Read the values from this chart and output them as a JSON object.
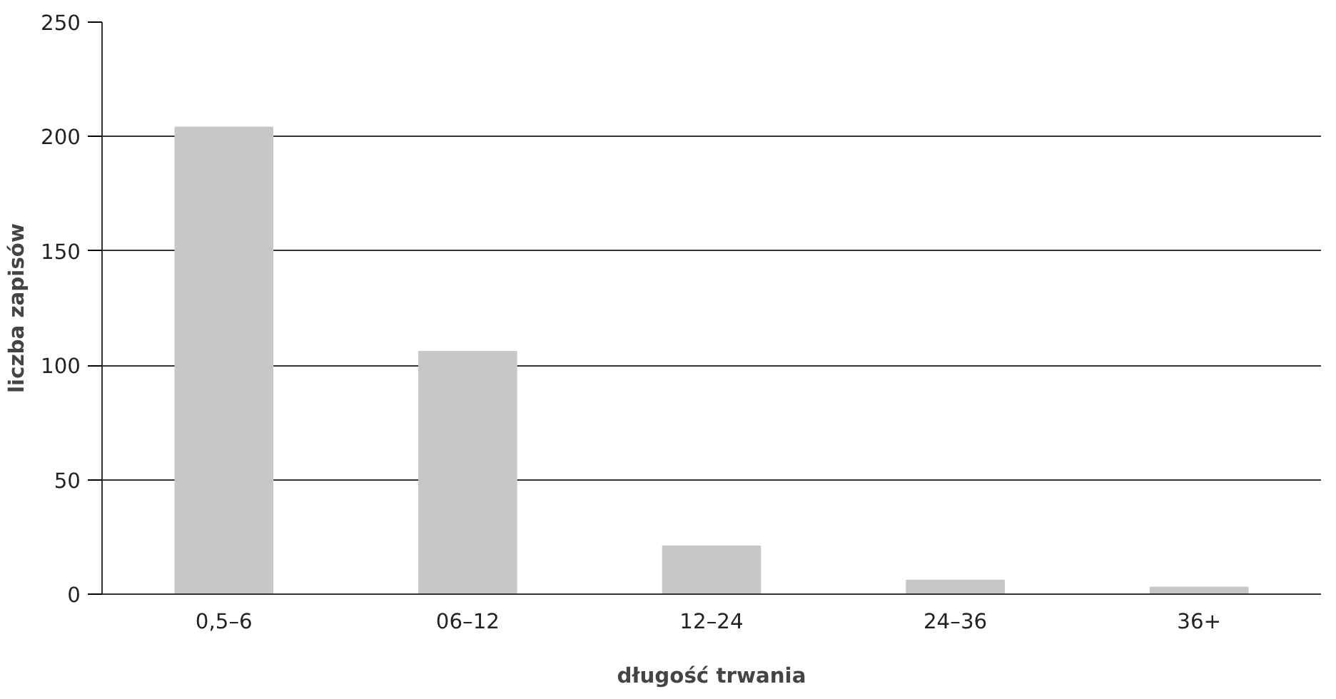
{
  "chart_data": {
    "type": "bar",
    "xlabel": "długość trwania",
    "ylabel": "liczba zapisów",
    "categories": [
      "0,5–6",
      "06–12",
      "12–24",
      "24–36",
      "36+"
    ],
    "values": [
      204,
      106,
      21,
      6,
      3
    ],
    "color": "#c6c7c9",
    "ylim": [
      0,
      250
    ],
    "yticks": [
      0,
      50,
      100,
      150,
      200,
      250
    ],
    "grid": "y"
  }
}
